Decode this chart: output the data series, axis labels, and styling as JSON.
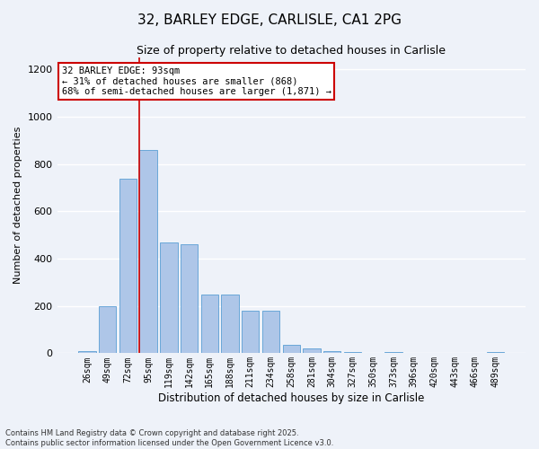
{
  "title1": "32, BARLEY EDGE, CARLISLE, CA1 2PG",
  "title2": "Size of property relative to detached houses in Carlisle",
  "xlabel": "Distribution of detached houses by size in Carlisle",
  "ylabel": "Number of detached properties",
  "annotation_line1": "32 BARLEY EDGE: 93sqm",
  "annotation_line2": "← 31% of detached houses are smaller (868)",
  "annotation_line3": "68% of semi-detached houses are larger (1,871) →",
  "footnote1": "Contains HM Land Registry data © Crown copyright and database right 2025.",
  "footnote2": "Contains public sector information licensed under the Open Government Licence v3.0.",
  "bin_labels": [
    "26sqm",
    "49sqm",
    "72sqm",
    "95sqm",
    "119sqm",
    "142sqm",
    "165sqm",
    "188sqm",
    "211sqm",
    "234sqm",
    "258sqm",
    "281sqm",
    "304sqm",
    "327sqm",
    "350sqm",
    "373sqm",
    "396sqm",
    "420sqm",
    "443sqm",
    "466sqm",
    "489sqm"
  ],
  "bar_values": [
    10,
    200,
    740,
    860,
    470,
    460,
    250,
    250,
    180,
    180,
    35,
    20,
    10,
    5,
    0,
    5,
    0,
    0,
    0,
    0,
    5
  ],
  "bar_color": "#aec6e8",
  "bar_edge_color": "#5a9fd4",
  "vline_color": "#cc0000",
  "annotation_box_color": "#cc0000",
  "annotation_bg": "#ffffff",
  "background_color": "#eef2f9",
  "grid_color": "#ffffff",
  "ylim": [
    0,
    1250
  ],
  "yticks": [
    0,
    200,
    400,
    600,
    800,
    1000,
    1200
  ]
}
